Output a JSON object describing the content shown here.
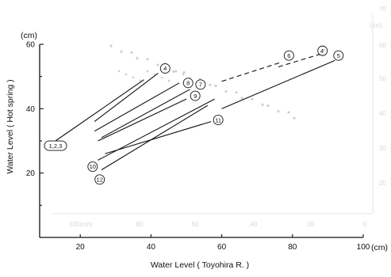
{
  "chart_data": {
    "type": "line",
    "xlabel": "Water Level ( Toyohira R. )",
    "ylabel": "Water Level ( Hot spring )",
    "x_unit": "(cm)",
    "y_unit": "(cm)",
    "xlim": [
      0,
      100
    ],
    "ylim": [
      0,
      60
    ],
    "x_ticks": [
      20,
      40,
      60,
      80,
      100
    ],
    "x_tick_labels": [
      "20",
      "40",
      "60",
      "80",
      "100"
    ],
    "y_ticks": [
      20,
      40,
      60
    ],
    "y_tick_labels": [
      "20",
      "40",
      "60"
    ],
    "grid": false,
    "series": [
      {
        "name": "1,2,3",
        "x": [
          13,
          38
        ],
        "y": [
          30,
          49
        ],
        "label_at": [
          13,
          28.5
        ],
        "label_shape": "pill"
      },
      {
        "name": "4",
        "x": [
          24,
          42
        ],
        "y": [
          36,
          51
        ],
        "label_at": [
          44,
          52.5
        ],
        "label_shape": "circle"
      },
      {
        "name": "8",
        "x": [
          24,
          48
        ],
        "y": [
          33,
          48
        ],
        "label_at": [
          50.5,
          48
        ],
        "label_shape": "circle"
      },
      {
        "name": "7",
        "x": [
          26,
          51
        ],
        "y": [
          31,
          46
        ],
        "label_at": [
          54,
          47.5
        ],
        "label_shape": "circle"
      },
      {
        "name": "9",
        "x": [
          25,
          50
        ],
        "y": [
          30,
          43
        ],
        "label_at": [
          52.5,
          44
        ],
        "label_shape": "circle"
      },
      {
        "name": "6",
        "x": [
          60,
          78
        ],
        "y": [
          48.5,
          55
        ],
        "label_at": [
          79,
          56.5
        ],
        "label_shape": "circle",
        "dashed_from": [
          60,
          48.5
        ],
        "dashed_to": [
          77,
          54.5
        ]
      },
      {
        "name": "4'",
        "x": [
          76,
          88
        ],
        "y": [
          53,
          57
        ],
        "label_at": [
          88.5,
          58
        ],
        "label_shape": "circle",
        "dashed": true
      },
      {
        "name": "5",
        "x": [
          60,
          92
        ],
        "y": [
          40,
          55
        ],
        "label_at": [
          93,
          56.5
        ],
        "label_shape": "circle"
      },
      {
        "name": "11",
        "x": [
          27,
          57
        ],
        "y": [
          26,
          36
        ],
        "label_at": [
          59,
          36.5
        ],
        "label_shape": "circle"
      },
      {
        "name": "10",
        "x": [
          25,
          58
        ],
        "y": [
          24,
          43
        ],
        "label_at": [
          23.5,
          22
        ],
        "label_shape": "circle"
      },
      {
        "name": "12",
        "x": [
          26,
          56
        ],
        "y": [
          21,
          41
        ],
        "label_at": [
          25.5,
          18
        ],
        "label_shape": "circle"
      }
    ]
  },
  "bleed_through": {
    "right_axis_label": "(cm)",
    "right_ticks": [
      "70",
      "60",
      "50",
      "40",
      "30",
      "20"
    ],
    "bottom_ticks": [
      "100(cm)",
      "80",
      "60",
      "40",
      "20",
      "0"
    ]
  }
}
